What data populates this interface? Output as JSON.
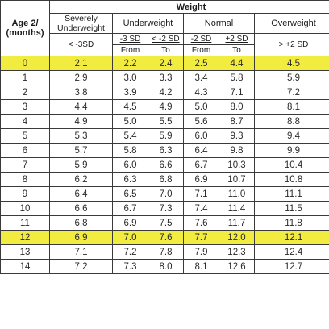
{
  "header": {
    "age": "Age 2/\n(months)",
    "weight": "Weight",
    "severely": "Severely\nUnderweight",
    "underweight": "Underweight",
    "normal": "Normal",
    "overweight": "Overweight",
    "sev_range": "< -3SD",
    "uw_sd1": "-3 SD",
    "uw_sd2": "< -2 SD",
    "n_sd1": "-2 SD",
    "n_sd2": "+2 SD",
    "ow_range": "> +2 SD",
    "from1": "From",
    "to1": "To",
    "from2": "From",
    "to2": "To"
  },
  "rows": [
    {
      "age": "0",
      "sev": "2.1",
      "uf": "2.2",
      "ut": "2.4",
      "nf": "2.5",
      "nt": "4.4",
      "ow": "4.5",
      "highlight": true
    },
    {
      "age": "1",
      "sev": "2.9",
      "uf": "3.0",
      "ut": "3.3",
      "nf": "3.4",
      "nt": "5.8",
      "ow": "5.9"
    },
    {
      "age": "2",
      "sev": "3.8",
      "uf": "3.9",
      "ut": "4.2",
      "nf": "4.3",
      "nt": "7.1",
      "ow": "7.2"
    },
    {
      "age": "3",
      "sev": "4.4",
      "uf": "4.5",
      "ut": "4.9",
      "nf": "5.0",
      "nt": "8.0",
      "ow": "8.1"
    },
    {
      "age": "4",
      "sev": "4.9",
      "uf": "5.0",
      "ut": "5.5",
      "nf": "5.6",
      "nt": "8.7",
      "ow": "8.8"
    },
    {
      "age": "5",
      "sev": "5.3",
      "uf": "5.4",
      "ut": "5.9",
      "nf": "6.0",
      "nt": "9.3",
      "ow": "9.4"
    },
    {
      "age": "6",
      "sev": "5.7",
      "uf": "5.8",
      "ut": "6.3",
      "nf": "6.4",
      "nt": "9.8",
      "ow": "9.9"
    },
    {
      "age": "7",
      "sev": "5.9",
      "uf": "6.0",
      "ut": "6.6",
      "nf": "6.7",
      "nt": "10.3",
      "ow": "10.4"
    },
    {
      "age": "8",
      "sev": "6.2",
      "uf": "6.3",
      "ut": "6.8",
      "nf": "6.9",
      "nt": "10.7",
      "ow": "10.8"
    },
    {
      "age": "9",
      "sev": "6.4",
      "uf": "6.5",
      "ut": "7.0",
      "nf": "7.1",
      "nt": "11.0",
      "ow": "11.1"
    },
    {
      "age": "10",
      "sev": "6.6",
      "uf": "6.7",
      "ut": "7.3",
      "nf": "7.4",
      "nt": "11.4",
      "ow": "11.5"
    },
    {
      "age": "11",
      "sev": "6.8",
      "uf": "6.9",
      "ut": "7.5",
      "nf": "7.6",
      "nt": "11.7",
      "ow": "11.8"
    },
    {
      "age": "12",
      "sev": "6.9",
      "uf": "7.0",
      "ut": "7.6",
      "nf": "7.7",
      "nt": "12.0",
      "ow": "12.1",
      "highlight": true
    },
    {
      "age": "13",
      "sev": "7.1",
      "uf": "7.2",
      "ut": "7.8",
      "nf": "7.9",
      "nt": "12.3",
      "ow": "12.4"
    },
    {
      "age": "14",
      "sev": "7.2",
      "uf": "7.3",
      "ut": "8.0",
      "nf": "8.1",
      "nt": "12.6",
      "ow": "12.7"
    }
  ],
  "colors": {
    "highlight": "#f1ec3f",
    "border": "#3a3a3a"
  }
}
